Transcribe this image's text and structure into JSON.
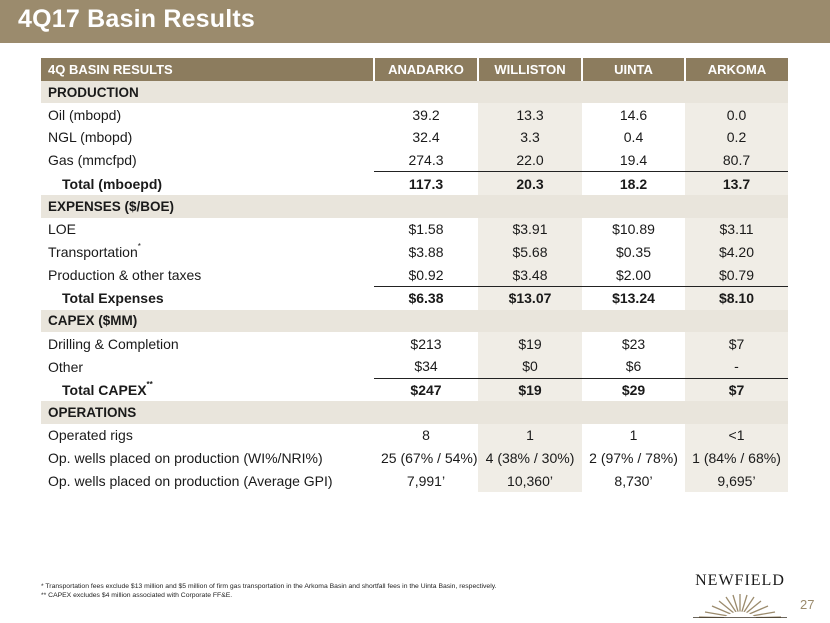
{
  "slide": {
    "title": "4Q17 Basin Results",
    "page_number": "27"
  },
  "table": {
    "header": [
      "4Q BASIN RESULTS",
      "ANADARKO",
      "WILLISTON",
      "UINTA",
      "ARKOMA"
    ],
    "sections": [
      {
        "title": "PRODUCTION",
        "rows": [
          {
            "label": "Oil (mbopd)",
            "sup": "",
            "values": [
              "39.2",
              "13.3",
              "14.6",
              "0.0"
            ],
            "total": false
          },
          {
            "label": "NGL (mbopd)",
            "sup": "",
            "values": [
              "32.4",
              "3.3",
              "0.4",
              "0.2"
            ],
            "total": false
          },
          {
            "label": "Gas (mmcfpd)",
            "sup": "",
            "values": [
              "274.3",
              "22.0",
              "19.4",
              "80.7"
            ],
            "total": false
          },
          {
            "label": "Total (mboepd)",
            "sup": "",
            "values": [
              "117.3",
              "20.3",
              "18.2",
              "13.7"
            ],
            "total": true
          }
        ]
      },
      {
        "title": "EXPENSES ($/BOE)",
        "rows": [
          {
            "label": "LOE",
            "sup": "",
            "values": [
              "$1.58",
              "$3.91",
              "$10.89",
              "$3.11"
            ],
            "total": false
          },
          {
            "label": "Transportation",
            "sup": "*",
            "values": [
              "$3.88",
              "$5.68",
              "$0.35",
              "$4.20"
            ],
            "total": false
          },
          {
            "label": "Production & other taxes",
            "sup": "",
            "values": [
              "$0.92",
              "$3.48",
              "$2.00",
              "$0.79"
            ],
            "total": false
          },
          {
            "label": "Total Expenses",
            "sup": "",
            "values": [
              "$6.38",
              "$13.07",
              "$13.24",
              "$8.10"
            ],
            "total": true
          }
        ]
      },
      {
        "title": "CAPEX ($MM)",
        "rows": [
          {
            "label": "Drilling & Completion",
            "sup": "",
            "values": [
              "$213",
              "$19",
              "$23",
              "$7"
            ],
            "total": false
          },
          {
            "label": "Other",
            "sup": "",
            "values": [
              "$34",
              "$0",
              "$6",
              "-"
            ],
            "total": false
          },
          {
            "label": "Total CAPEX",
            "sup": "**",
            "values": [
              "$247",
              "$19",
              "$29",
              "$7"
            ],
            "total": true
          }
        ]
      },
      {
        "title": "OPERATIONS",
        "rows": [
          {
            "label": "Operated rigs",
            "sup": "",
            "values": [
              "8",
              "1",
              "1",
              "<1"
            ],
            "total": false
          },
          {
            "label": "Op. wells placed on production (WI%/NRI%)",
            "sup": "",
            "values": [
              "25 (67% / 54%)",
              "4 (38% / 30%)",
              "2 (97% / 78%)",
              "1 (84% / 68%)"
            ],
            "total": false
          },
          {
            "label": "Op. wells placed on production (Average GPI)",
            "sup": "",
            "values": [
              "7,991’",
              "10,360’",
              "8,730’",
              "9,695’"
            ],
            "total": false
          }
        ]
      }
    ]
  },
  "footnotes": [
    "* Transportation fees exclude $13 million and $5 million of firm gas transportation in the Arkoma Basin and shortfall fees in the Uinta Basin, respectively.",
    "** CAPEX excludes $4 million associated with Corporate FF&E."
  ],
  "logo": {
    "text": "NEWFIELD",
    "icon": "sunburst-logo-icon"
  },
  "colors": {
    "title_bar": "#9b8b6d",
    "header_row": "#8c7c5e",
    "section_row": "#e9e5dc",
    "shaded_column": "#f0ede6"
  }
}
